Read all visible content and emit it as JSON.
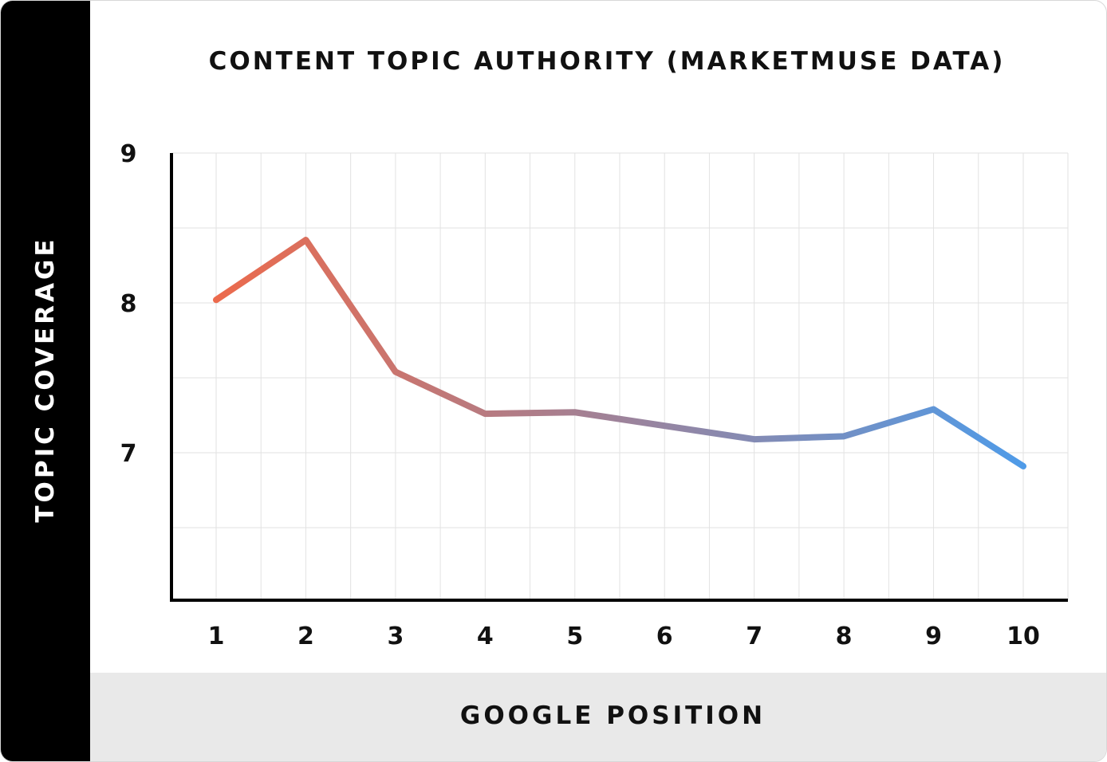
{
  "chart_data": {
    "type": "line",
    "title": "CONTENT TOPIC AUTHORITY (MARKETMUSE DATA)",
    "xlabel": "GOOGLE POSITION",
    "ylabel": "TOPIC COVERAGE",
    "x": [
      1,
      2,
      3,
      4,
      5,
      6,
      7,
      8,
      9,
      10
    ],
    "x_tick_labels": [
      "1",
      "2",
      "3",
      "4",
      "5",
      "6",
      "7",
      "8",
      "9",
      "10"
    ],
    "y_tick_labels": [
      "9",
      "8",
      "7"
    ],
    "y_ticks": [
      9,
      8,
      7
    ],
    "ylim": [
      6,
      9
    ],
    "grid": true,
    "series": [
      {
        "values": [
          8.02,
          8.42,
          7.54,
          7.26,
          7.27,
          7.18,
          7.09,
          7.11,
          7.29,
          6.91
        ],
        "color_start": "#ec6a4c",
        "color_end": "#4f9be8"
      }
    ]
  }
}
